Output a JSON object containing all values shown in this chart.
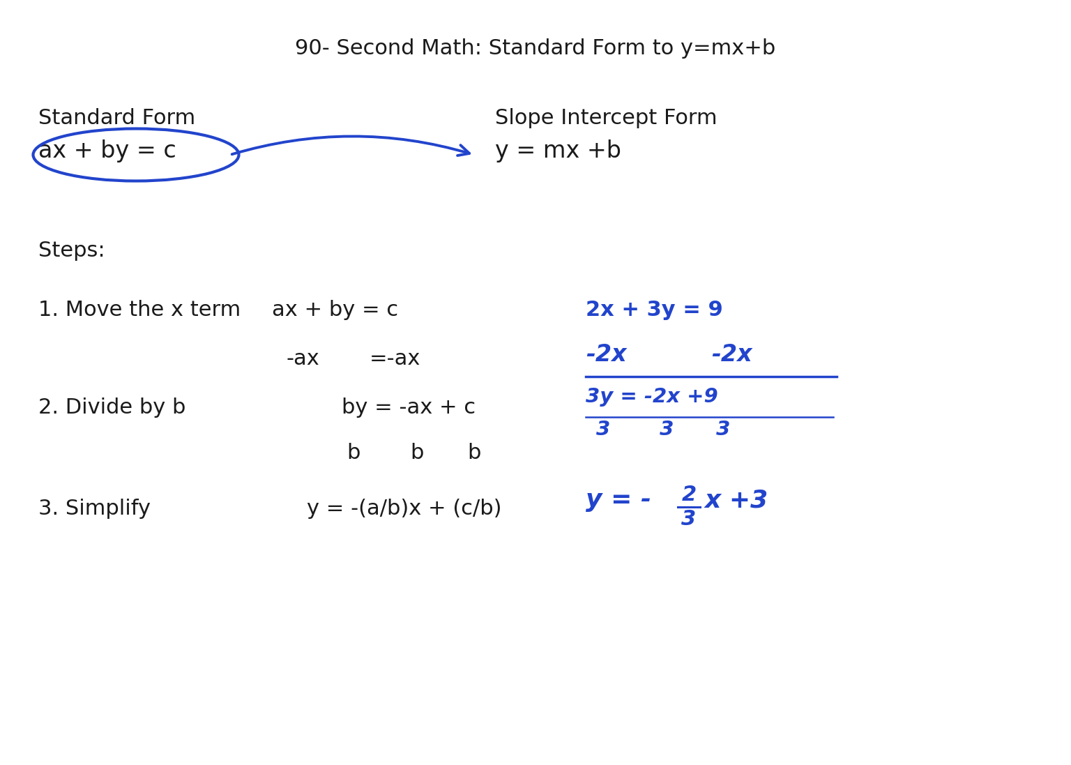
{
  "title": "90- Second Math: Standard Form to y=mx+b",
  "title_fontsize": 20,
  "bg_color": "#ffffff",
  "text_color": "#1a1a1a",
  "blue_color": "#2244cc",
  "standard_form_label": "Standard Form",
  "standard_form_eq": "ax + by = c",
  "slope_intercept_label": "Slope Intercept Form",
  "slope_intercept_eq": "y = mx +b",
  "steps_label": "Steps:",
  "step1_label": "1. Move the x term",
  "step1_eq1": "ax + by = c",
  "step1_eq2": "-ax",
  "step1_eq3": "=-ax",
  "step2_label": "2. Divide by b",
  "step2_eq1": "by = -ax + c",
  "step2_eq2_b1": "b",
  "step2_eq2_b2": "b",
  "step2_eq2_b3": "b",
  "step3_label": "3. Simplify",
  "step3_eq": "y = -(a/b)x + (c/b)",
  "example_eq1": "2x + 3y = 9",
  "example_neg2x_1": "-2x",
  "example_neg2x_2": "-2x",
  "example_3y_num": "3y = -2x +9",
  "example_3y_den": "3       3      3",
  "example_y_prefix": "y = -",
  "example_frac_num": "2",
  "example_frac_den": "3",
  "example_y_suffix": "x +3"
}
